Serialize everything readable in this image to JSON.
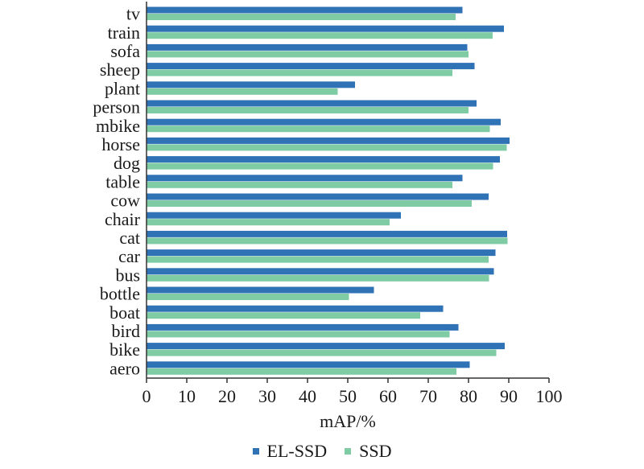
{
  "chart_data": {
    "type": "bar",
    "orientation": "horizontal",
    "categories": [
      "tv",
      "train",
      "sofa",
      "sheep",
      "plant",
      "person",
      "mbike",
      "horse",
      "dog",
      "table",
      "cow",
      "chair",
      "cat",
      "car",
      "bus",
      "bottle",
      "boat",
      "bird",
      "bike",
      "aero"
    ],
    "series": [
      {
        "name": "EL-SSD",
        "color": "#2f72b6",
        "values": [
          78.5,
          88.8,
          79.7,
          81.5,
          51.8,
          82.0,
          88.0,
          90.2,
          87.8,
          78.5,
          85.0,
          63.2,
          89.6,
          86.7,
          86.3,
          56.5,
          73.7,
          77.5,
          89.0,
          80.3
        ]
      },
      {
        "name": "SSD",
        "color": "#7fcba4",
        "values": [
          76.8,
          86.0,
          80.0,
          76.0,
          47.5,
          80.0,
          85.3,
          89.5,
          86.1,
          76.0,
          80.8,
          60.4,
          89.7,
          85.0,
          85.1,
          50.3,
          68.0,
          75.3,
          86.9,
          77.0
        ]
      }
    ],
    "xlabel": "mAP/%",
    "ylabel": "",
    "xlim": [
      0,
      100
    ],
    "xticks": [
      "0",
      "10",
      "20",
      "30",
      "40",
      "50",
      "60",
      "70",
      "80",
      "90",
      "100"
    ],
    "grid": false,
    "legend_position": "bottom"
  }
}
